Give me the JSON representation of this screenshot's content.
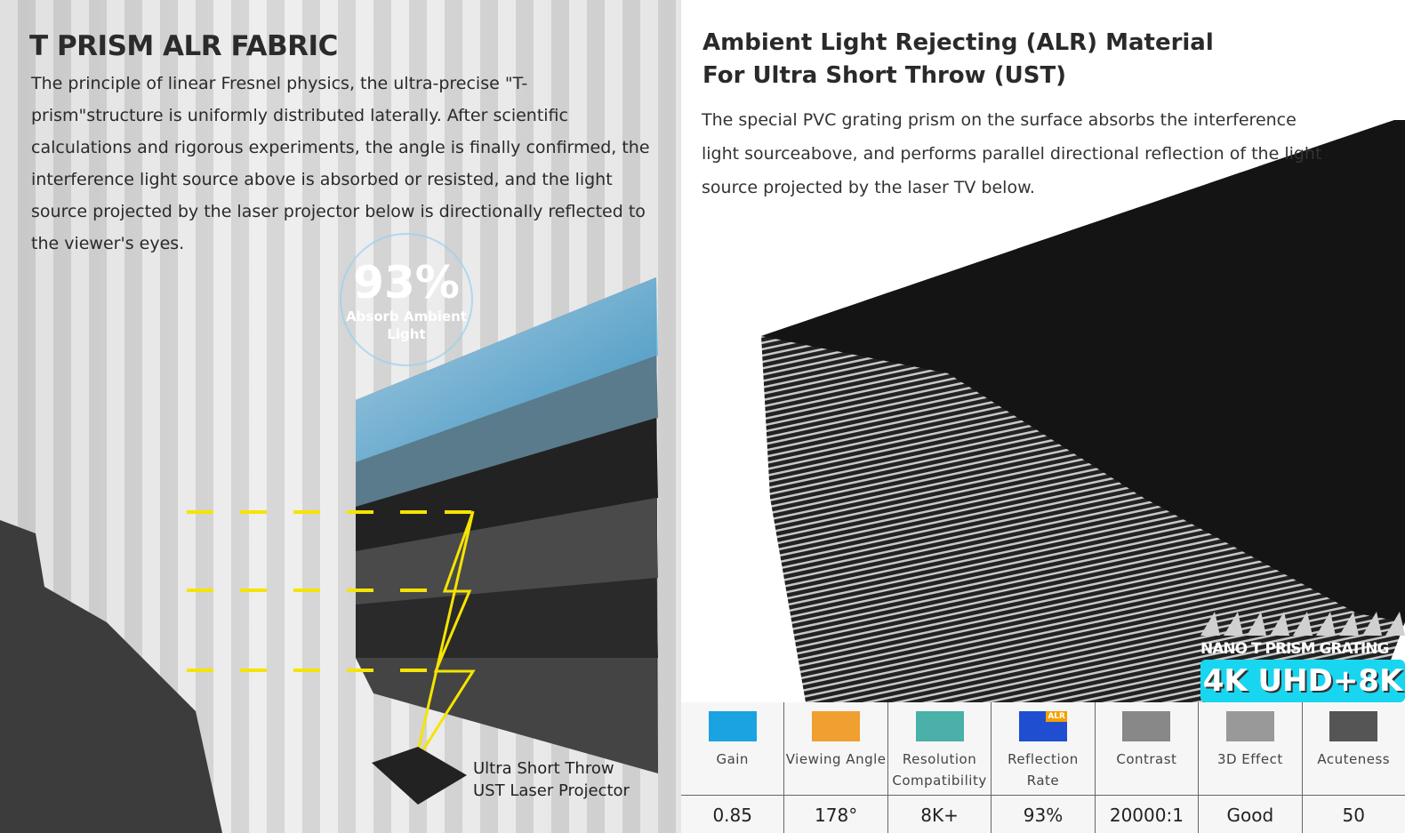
{
  "left": {
    "title": "T PRISM ALR FABRIC",
    "body": "The principle of linear Fresnel physics, the ultra-precise \"T-prism\"structure is uniformly distributed laterally. After scientific calculations and rigorous experiments, the angle is finally confirmed, the interference light source above is absorbed or resisted, and the light source projected by the laser projector below  is directionally reflected to the viewer's eyes.",
    "badge_value": "93%",
    "badge_label": "Absorb Ambient Light",
    "projector_line1": "Ultra Short Throw",
    "projector_line2": "UST Laser Projector"
  },
  "right": {
    "title_line1": "Ambient Light Rejecting (ALR) Material",
    "title_line2": "For Ultra Short Throw (UST)",
    "body": "The special PVC grating prism on the surface absorbs the interference light sourceabove,  and  performs parallel directional reflection of the light source projected by the laser TV below.",
    "nano_label": "NANO T PRISM GRATING",
    "uhd_badge": "4K UHD+8K",
    "alr_tag": "ALR",
    "specs": [
      {
        "icon": "sun-icon",
        "color": "#1aa3e0",
        "name": "Gain",
        "value": "0.85"
      },
      {
        "icon": "eye-icon",
        "color": "#f0a030",
        "name": "Viewing Angle",
        "value": "178°"
      },
      {
        "icon": "resolution-triangle-icon",
        "color": "#4ab0a8",
        "name": "Resolution Compatibility",
        "value": "8K+"
      },
      {
        "icon": "alr-reflection-icon",
        "color": "#1f4fd0",
        "name": "Reflection Rate",
        "value": "93%"
      },
      {
        "icon": "contrast-icon",
        "color": "#888888",
        "name": "Contrast",
        "value": "20000:1"
      },
      {
        "icon": "3d-effect-icon",
        "color": "#999999",
        "name": "3D Effect",
        "value": "Good"
      },
      {
        "icon": "acuteness-icon",
        "color": "#555555",
        "name": "Acuteness",
        "value": "50"
      }
    ]
  }
}
